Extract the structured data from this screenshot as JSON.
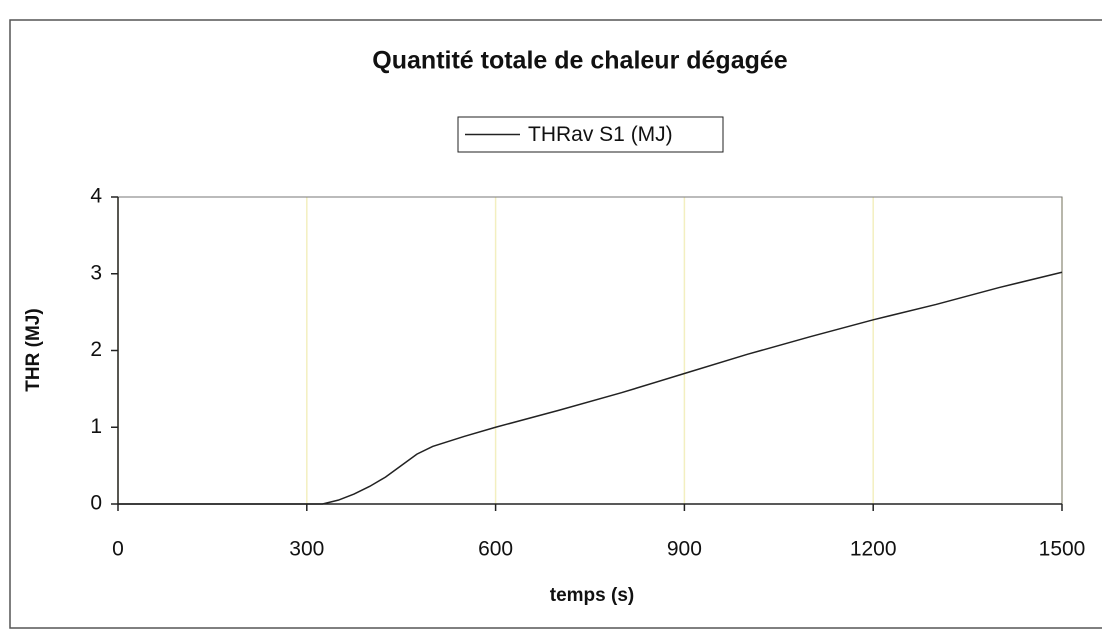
{
  "chart_data": {
    "type": "line",
    "title": "Quantité totale de chaleur dégagée",
    "xlabel": "temps (s)",
    "ylabel": "THR (MJ)",
    "series": [
      {
        "name": "THRav S1 (MJ)",
        "color": "#222222",
        "x": [
          0,
          100,
          200,
          300,
          325,
          350,
          375,
          400,
          425,
          450,
          475,
          500,
          550,
          600,
          700,
          800,
          900,
          1000,
          1100,
          1200,
          1300,
          1400,
          1500
        ],
        "values": [
          0,
          0,
          0,
          0,
          0,
          0.05,
          0.13,
          0.23,
          0.35,
          0.5,
          0.65,
          0.75,
          0.88,
          1.0,
          1.22,
          1.45,
          1.7,
          1.95,
          2.18,
          2.4,
          2.6,
          2.82,
          3.02
        ]
      }
    ],
    "xlim": [
      0,
      1500
    ],
    "xticks": [
      0,
      300,
      600,
      900,
      1200,
      1500
    ],
    "ylim": [
      0,
      4
    ],
    "yticks": [
      0,
      1,
      2,
      3,
      4
    ],
    "grid": true,
    "grid_color": "#f3efc0",
    "legend": "top"
  }
}
